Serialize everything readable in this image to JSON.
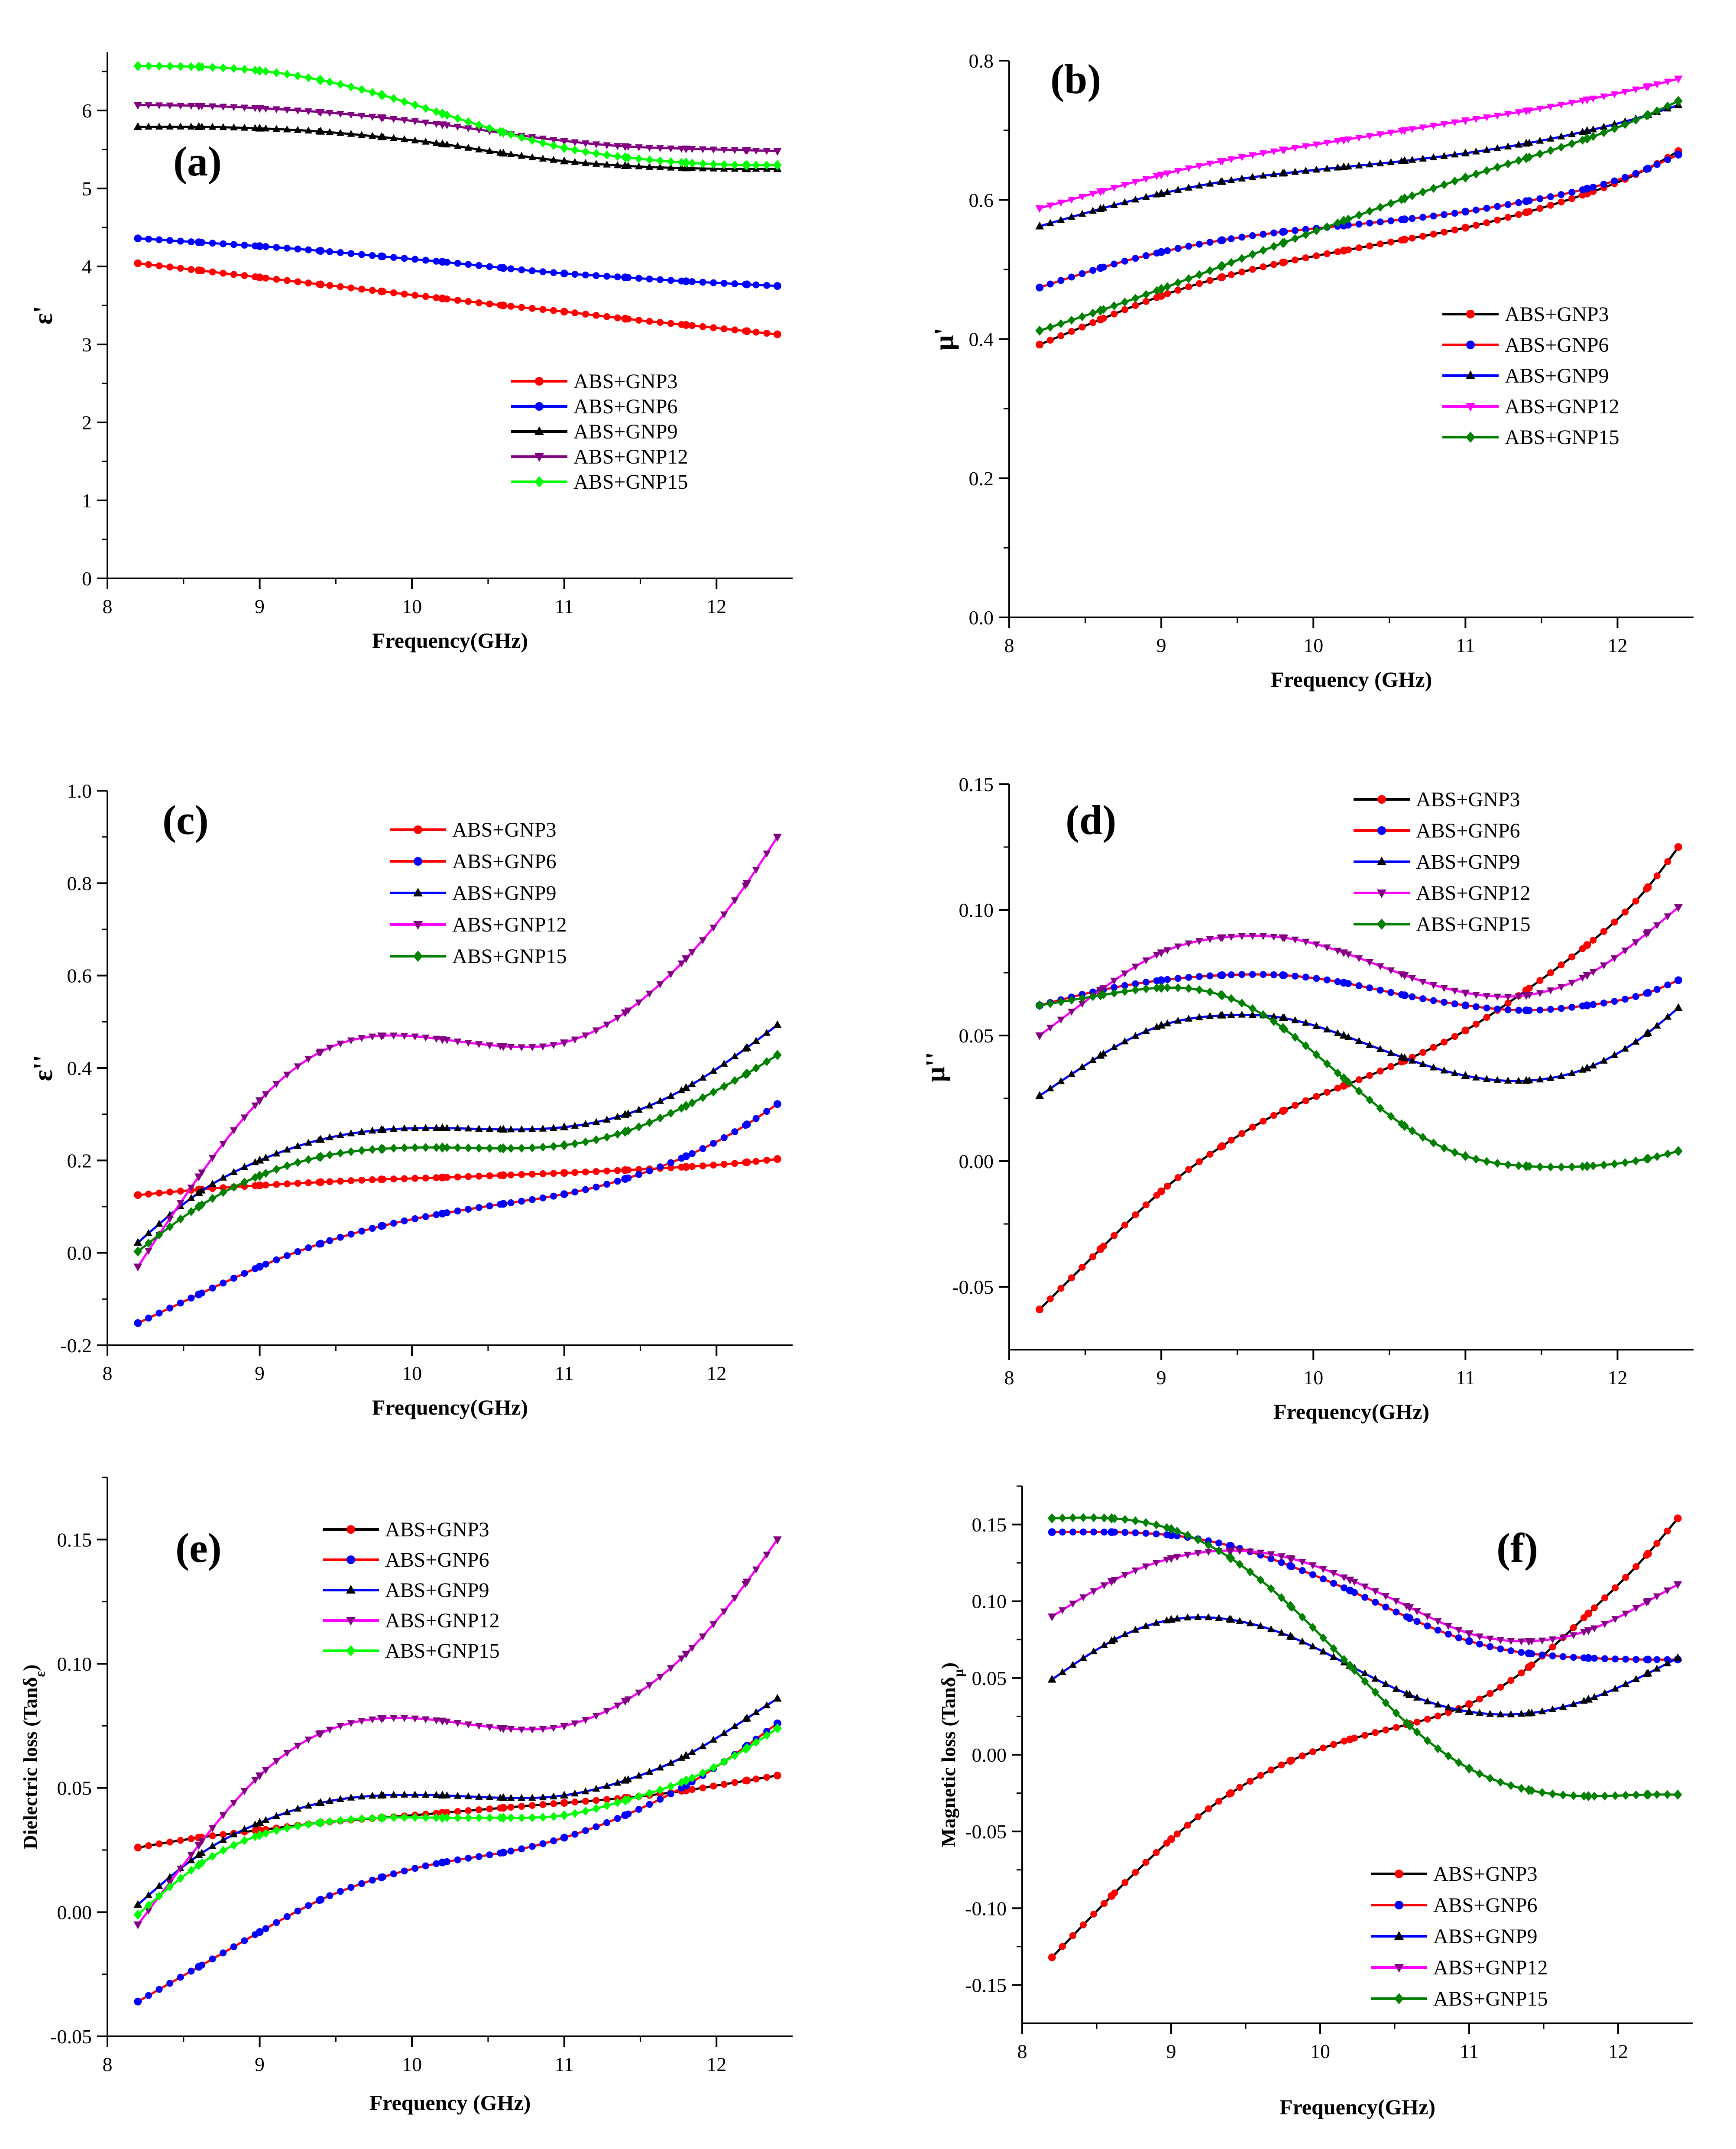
{
  "figure": {
    "series_names": [
      "ABS+GNP3",
      "ABS+GNP6",
      "ABS+GNP9",
      "ABS+GNP12",
      "ABS+GNP15"
    ]
  },
  "chart_data": [
    {
      "id": "a",
      "panel_label": "(a)",
      "type": "line",
      "xlabel": "Frequency(GHz)",
      "ylabel": "ε'",
      "xlim": [
        8,
        12.5
      ],
      "ylim": [
        0,
        6.75
      ],
      "xticks": [
        8,
        9,
        10,
        11,
        12
      ],
      "yticks": [
        0,
        1,
        2,
        3,
        4,
        5,
        6
      ],
      "ytick_decimals": 0,
      "legend_position": "bottom-right",
      "x": [
        8.2,
        8.6,
        9.0,
        9.4,
        9.8,
        10.2,
        10.6,
        11.0,
        11.4,
        11.8,
        12.2,
        12.4
      ],
      "series": [
        {
          "name": "ABS+GNP3",
          "line_color": "#ff0000",
          "marker_color": "#ff0000",
          "marker": "circle",
          "values": [
            4.04,
            3.95,
            3.86,
            3.77,
            3.68,
            3.59,
            3.5,
            3.42,
            3.33,
            3.25,
            3.17,
            3.13
          ]
        },
        {
          "name": "ABS+GNP6",
          "line_color": "#0000ff",
          "marker_color": "#0000ff",
          "marker": "circle",
          "values": [
            4.36,
            4.31,
            4.26,
            4.2,
            4.13,
            4.06,
            3.98,
            3.91,
            3.86,
            3.81,
            3.77,
            3.75
          ]
        },
        {
          "name": "ABS+GNP9",
          "line_color": "#000000",
          "marker_color": "#000000",
          "marker": "triangle-up",
          "values": [
            5.79,
            5.79,
            5.77,
            5.73,
            5.66,
            5.57,
            5.45,
            5.35,
            5.29,
            5.26,
            5.25,
            5.25
          ]
        },
        {
          "name": "ABS+GNP12",
          "line_color": "#800080",
          "marker_color": "#800080",
          "marker": "triangle-down",
          "values": [
            6.07,
            6.06,
            6.03,
            5.98,
            5.91,
            5.82,
            5.71,
            5.61,
            5.54,
            5.51,
            5.49,
            5.48
          ]
        },
        {
          "name": "ABS+GNP15",
          "line_color": "#00ff00",
          "marker_color": "#00ff00",
          "marker": "diamond",
          "values": [
            6.57,
            6.56,
            6.51,
            6.39,
            6.2,
            5.96,
            5.72,
            5.52,
            5.4,
            5.33,
            5.3,
            5.3
          ]
        }
      ]
    },
    {
      "id": "b",
      "panel_label": "(b)",
      "type": "line",
      "xlabel": "Frequency (GHz)",
      "ylabel": "μ'",
      "xlim": [
        8,
        12.5
      ],
      "ylim": [
        0,
        0.8
      ],
      "xticks": [
        8,
        9,
        10,
        11,
        12
      ],
      "yticks": [
        0.0,
        0.2,
        0.4,
        0.6,
        0.8
      ],
      "ytick_decimals": 1,
      "legend_position": "center-right",
      "x": [
        8.2,
        8.6,
        9.0,
        9.4,
        9.8,
        10.2,
        10.6,
        11.0,
        11.4,
        11.8,
        12.2,
        12.4
      ],
      "series": [
        {
          "name": "ABS+GNP3",
          "line_color": "#000000",
          "marker_color": "#ff0000",
          "marker": "circle",
          "values": [
            0.392,
            0.428,
            0.462,
            0.489,
            0.51,
            0.527,
            0.543,
            0.56,
            0.582,
            0.609,
            0.645,
            0.67
          ]
        },
        {
          "name": "ABS+GNP6",
          "line_color": "#ff0000",
          "marker_color": "#0000ff",
          "marker": "circle",
          "values": [
            0.474,
            0.502,
            0.525,
            0.542,
            0.554,
            0.563,
            0.572,
            0.583,
            0.598,
            0.616,
            0.645,
            0.665
          ]
        },
        {
          "name": "ABS+GNP9",
          "line_color": "#0000ff",
          "marker_color": "#000000",
          "marker": "triangle-up",
          "values": [
            0.562,
            0.587,
            0.609,
            0.626,
            0.638,
            0.647,
            0.656,
            0.667,
            0.681,
            0.699,
            0.722,
            0.736
          ]
        },
        {
          "name": "ABS+GNP12",
          "line_color": "#ff00ff",
          "marker_color": "#ff00ff",
          "marker": "triangle-down",
          "values": [
            0.588,
            0.612,
            0.636,
            0.656,
            0.672,
            0.686,
            0.7,
            0.714,
            0.728,
            0.744,
            0.763,
            0.774
          ]
        },
        {
          "name": "ABS+GNP15",
          "line_color": "#008000",
          "marker_color": "#008000",
          "marker": "diamond",
          "values": [
            0.412,
            0.441,
            0.472,
            0.505,
            0.538,
            0.57,
            0.602,
            0.632,
            0.66,
            0.688,
            0.722,
            0.742
          ]
        }
      ]
    },
    {
      "id": "c",
      "panel_label": "(c)",
      "type": "line",
      "xlabel": "Frequency(GHz)",
      "ylabel": "ε''",
      "xlim": [
        8,
        12.5
      ],
      "ylim": [
        -0.2,
        1.0
      ],
      "xticks": [
        8,
        9,
        10,
        11,
        12
      ],
      "yticks": [
        -0.2,
        0.0,
        0.2,
        0.4,
        0.6,
        0.8,
        1.0
      ],
      "ytick_decimals": 1,
      "legend_position": "top-right",
      "x": [
        8.2,
        8.6,
        9.0,
        9.4,
        9.8,
        10.2,
        10.6,
        11.0,
        11.4,
        11.8,
        12.2,
        12.4
      ],
      "series": [
        {
          "name": "ABS+GNP3",
          "line_color": "#ff0000",
          "marker_color": "#ff0000",
          "marker": "circle",
          "values": [
            0.125,
            0.137,
            0.146,
            0.153,
            0.159,
            0.163,
            0.168,
            0.173,
            0.179,
            0.186,
            0.196,
            0.203
          ]
        },
        {
          "name": "ABS+GNP6",
          "line_color": "#ff0000",
          "marker_color": "#0000ff",
          "marker": "circle",
          "values": [
            -0.152,
            -0.09,
            -0.03,
            0.02,
            0.058,
            0.085,
            0.106,
            0.127,
            0.16,
            0.209,
            0.278,
            0.322
          ]
        },
        {
          "name": "ABS+GNP9",
          "line_color": "#0000ff",
          "marker_color": "#000000",
          "marker": "triangle-up",
          "values": [
            0.022,
            0.13,
            0.2,
            0.245,
            0.266,
            0.27,
            0.267,
            0.272,
            0.299,
            0.357,
            0.444,
            0.493
          ]
        },
        {
          "name": "ABS+GNP12",
          "line_color": "#ff00ff",
          "marker_color": "#800080",
          "marker": "triangle-down",
          "values": [
            -0.03,
            0.165,
            0.33,
            0.435,
            0.47,
            0.462,
            0.447,
            0.455,
            0.52,
            0.637,
            0.8,
            0.9
          ]
        },
        {
          "name": "ABS+GNP15",
          "line_color": "#008000",
          "marker_color": "#008000",
          "marker": "diamond",
          "values": [
            0.003,
            0.1,
            0.167,
            0.208,
            0.225,
            0.228,
            0.226,
            0.233,
            0.262,
            0.318,
            0.388,
            0.428
          ]
        }
      ]
    },
    {
      "id": "d",
      "panel_label": "(d)",
      "type": "line",
      "xlabel": "Frequency(GHz)",
      "ylabel": "μ''",
      "xlim": [
        8,
        12.5
      ],
      "ylim": [
        -0.075,
        0.15
      ],
      "xticks": [
        8,
        9,
        10,
        11,
        12
      ],
      "yticks": [
        -0.05,
        0.0,
        0.05,
        0.1,
        0.15
      ],
      "ytick_decimals": 2,
      "legend_position": "top-right",
      "x": [
        8.2,
        8.6,
        9.0,
        9.4,
        9.8,
        10.2,
        10.6,
        11.0,
        11.4,
        11.8,
        12.2,
        12.4
      ],
      "series": [
        {
          "name": "ABS+GNP3",
          "line_color": "#000000",
          "marker_color": "#ff0000",
          "marker": "circle",
          "values": [
            -0.059,
            -0.035,
            -0.012,
            0.006,
            0.02,
            0.03,
            0.04,
            0.052,
            0.068,
            0.086,
            0.109,
            0.125
          ]
        },
        {
          "name": "ABS+GNP6",
          "line_color": "#ff0000",
          "marker_color": "#0000ff",
          "marker": "circle",
          "values": [
            0.062,
            0.068,
            0.072,
            0.074,
            0.074,
            0.071,
            0.066,
            0.062,
            0.06,
            0.062,
            0.067,
            0.072
          ]
        },
        {
          "name": "ABS+GNP9",
          "line_color": "#0000ff",
          "marker_color": "#000000",
          "marker": "triangle-up",
          "values": [
            0.026,
            0.042,
            0.054,
            0.058,
            0.057,
            0.05,
            0.041,
            0.034,
            0.032,
            0.037,
            0.051,
            0.061
          ]
        },
        {
          "name": "ABS+GNP12",
          "line_color": "#ff00ff",
          "marker_color": "#800080",
          "marker": "triangle-down",
          "values": [
            0.05,
            0.068,
            0.083,
            0.089,
            0.089,
            0.083,
            0.074,
            0.067,
            0.066,
            0.074,
            0.091,
            0.101
          ]
        },
        {
          "name": "ABS+GNP15",
          "line_color": "#008000",
          "marker_color": "#008000",
          "marker": "diamond",
          "values": [
            0.062,
            0.066,
            0.069,
            0.066,
            0.053,
            0.033,
            0.014,
            0.002,
            -0.002,
            -0.002,
            0.001,
            0.004
          ]
        }
      ]
    },
    {
      "id": "e",
      "panel_label": "(e)",
      "type": "line",
      "xlabel": "Frequency (GHz)",
      "ylabel": "Dielectric loss (Tanδ",
      "ylabel_subscript": "ε",
      "ylabel_suffix": ")",
      "xlim": [
        8,
        12.5
      ],
      "ylim": [
        -0.05,
        0.175
      ],
      "xticks": [
        8,
        9,
        10,
        11,
        12
      ],
      "yticks": [
        -0.05,
        0.0,
        0.05,
        0.1,
        0.15
      ],
      "ytick_decimals": 2,
      "legend_position": "top-center",
      "x": [
        8.2,
        8.6,
        9.0,
        9.4,
        9.8,
        10.2,
        10.6,
        11.0,
        11.4,
        11.8,
        12.2,
        12.4
      ],
      "series": [
        {
          "name": "ABS+GNP3",
          "line_color": "#000000",
          "marker_color": "#ff0000",
          "marker": "circle",
          "values": [
            0.026,
            0.03,
            0.033,
            0.036,
            0.038,
            0.04,
            0.042,
            0.044,
            0.046,
            0.049,
            0.053,
            0.055
          ]
        },
        {
          "name": "ABS+GNP6",
          "line_color": "#ff0000",
          "marker_color": "#0000ff",
          "marker": "circle",
          "values": [
            -0.036,
            -0.022,
            -0.008,
            0.005,
            0.014,
            0.02,
            0.024,
            0.03,
            0.039,
            0.051,
            0.067,
            0.076
          ]
        },
        {
          "name": "ABS+GNP9",
          "line_color": "#0000ff",
          "marker_color": "#000000",
          "marker": "triangle-up",
          "values": [
            0.003,
            0.023,
            0.036,
            0.044,
            0.047,
            0.047,
            0.046,
            0.047,
            0.053,
            0.063,
            0.078,
            0.086
          ]
        },
        {
          "name": "ABS+GNP12",
          "line_color": "#ff00ff",
          "marker_color": "#800080",
          "marker": "triangle-down",
          "values": [
            -0.005,
            0.027,
            0.055,
            0.072,
            0.078,
            0.077,
            0.074,
            0.075,
            0.085,
            0.104,
            0.133,
            0.15
          ]
        },
        {
          "name": "ABS+GNP15",
          "line_color": "#00ff00",
          "marker_color": "#00ff00",
          "marker": "diamond",
          "values": [
            -0.001,
            0.019,
            0.031,
            0.036,
            0.038,
            0.038,
            0.038,
            0.039,
            0.045,
            0.053,
            0.066,
            0.074
          ]
        }
      ]
    },
    {
      "id": "f",
      "panel_label": "(f)",
      "type": "line",
      "xlabel": "Frequency(GHz)",
      "ylabel": "Magnetic loss (Tanδ",
      "ylabel_subscript": "μ",
      "ylabel_suffix": ")",
      "xlim": [
        8,
        12.5
      ],
      "ylim": [
        -0.175,
        0.175
      ],
      "xticks": [
        8,
        9,
        10,
        11,
        12
      ],
      "yticks": [
        -0.15,
        -0.1,
        -0.05,
        0.0,
        0.05,
        0.1,
        0.15
      ],
      "ytick_decimals": 2,
      "legend_position": "bottom-right",
      "x": [
        8.2,
        8.6,
        9.0,
        9.4,
        9.8,
        10.2,
        10.6,
        11.0,
        11.4,
        11.8,
        12.2,
        12.4
      ],
      "series": [
        {
          "name": "ABS+GNP3",
          "line_color": "#000000",
          "marker_color": "#ff0000",
          "marker": "circle",
          "values": [
            -0.132,
            -0.092,
            -0.055,
            -0.025,
            -0.004,
            0.01,
            0.02,
            0.033,
            0.057,
            0.092,
            0.131,
            0.154
          ]
        },
        {
          "name": "ABS+GNP6",
          "line_color": "#ff0000",
          "marker_color": "#0000ff",
          "marker": "circle",
          "values": [
            0.145,
            0.145,
            0.143,
            0.136,
            0.123,
            0.107,
            0.089,
            0.074,
            0.066,
            0.063,
            0.062,
            0.062
          ]
        },
        {
          "name": "ABS+GNP9",
          "line_color": "#0000ff",
          "marker_color": "#000000",
          "marker": "triangle-up",
          "values": [
            0.049,
            0.074,
            0.088,
            0.088,
            0.077,
            0.058,
            0.039,
            0.028,
            0.027,
            0.036,
            0.053,
            0.063
          ]
        },
        {
          "name": "ABS+GNP12",
          "line_color": "#ff00ff",
          "marker_color": "#800080",
          "marker": "triangle-down",
          "values": [
            0.09,
            0.113,
            0.128,
            0.133,
            0.128,
            0.114,
            0.096,
            0.079,
            0.074,
            0.081,
            0.1,
            0.111
          ]
        },
        {
          "name": "ABS+GNP15",
          "line_color": "#008000",
          "marker_color": "#008000",
          "marker": "diamond",
          "values": [
            0.154,
            0.154,
            0.147,
            0.128,
            0.097,
            0.058,
            0.019,
            -0.009,
            -0.023,
            -0.027,
            -0.026,
            -0.026
          ]
        }
      ]
    }
  ]
}
